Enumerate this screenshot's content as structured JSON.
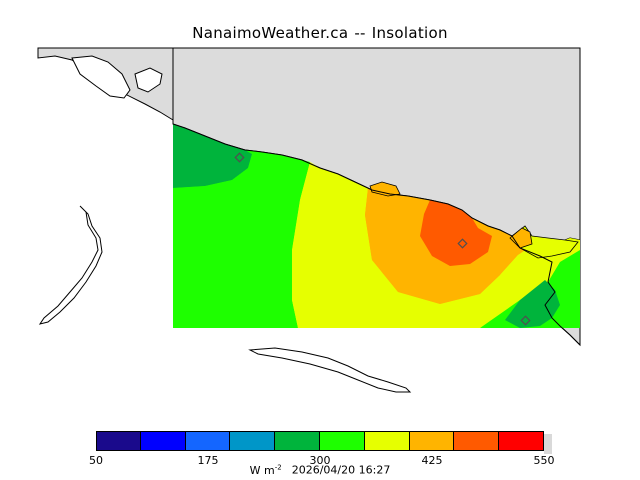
{
  "header": {
    "site": "NanaimoWeather.ca",
    "separator": "--",
    "field": "Insolation"
  },
  "colorbar": {
    "min": 50,
    "max": 550,
    "step": 50,
    "colors": [
      "#1a0a8c",
      "#0000ff",
      "#1466ff",
      "#0096c8",
      "#00b43c",
      "#1eff00",
      "#e6ff00",
      "#ffb400",
      "#ff5a00",
      "#ff0000"
    ],
    "tick_labels": [
      "50",
      "175",
      "300",
      "425",
      "550"
    ],
    "units_prefix": "W m",
    "units_exponent": "-2",
    "timestamp": "2026/04/20 16:27"
  },
  "map": {
    "land_color": "#dcdcdc",
    "coastline_color": "#000000",
    "station_marker_color": "#505050"
  }
}
